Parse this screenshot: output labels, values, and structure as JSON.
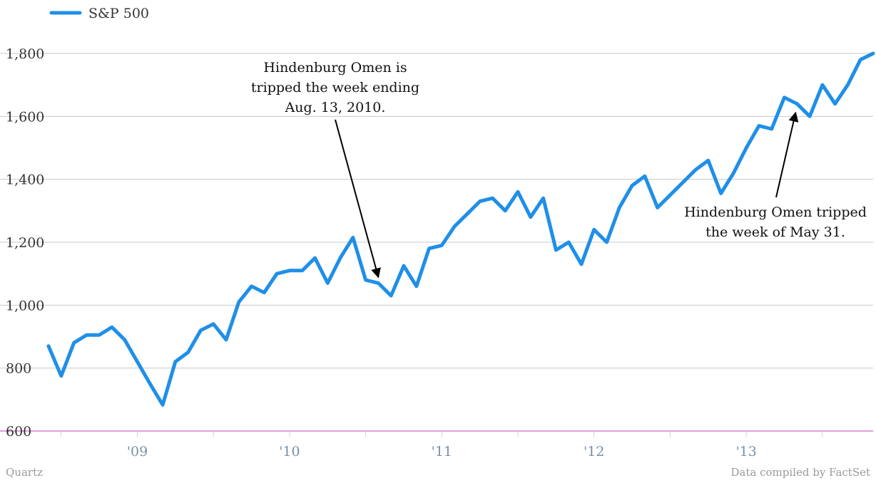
{
  "chart_data": {
    "type": "line",
    "series": [
      {
        "name": "S&P 500",
        "color": "#1f8fe8",
        "points": [
          [
            "2008-06",
            870
          ],
          [
            "2008-07",
            775
          ],
          [
            "2008-08",
            880
          ],
          [
            "2008-09",
            905
          ],
          [
            "2008-10",
            905
          ],
          [
            "2008-11",
            930
          ],
          [
            "2008-12",
            890
          ],
          [
            "2009-01",
            820
          ],
          [
            "2009-02",
            750
          ],
          [
            "2009-03",
            683
          ],
          [
            "2009-04",
            820
          ],
          [
            "2009-05",
            850
          ],
          [
            "2009-06",
            920
          ],
          [
            "2009-07",
            940
          ],
          [
            "2009-08",
            890
          ],
          [
            "2009-09",
            1010
          ],
          [
            "2009-10",
            1060
          ],
          [
            "2009-11",
            1040
          ],
          [
            "2009-12",
            1100
          ],
          [
            "2010-01",
            1110
          ],
          [
            "2010-02",
            1110
          ],
          [
            "2010-03",
            1150
          ],
          [
            "2010-04",
            1070
          ],
          [
            "2010-05",
            1150
          ],
          [
            "2010-06",
            1215
          ],
          [
            "2010-07",
            1080
          ],
          [
            "2010-08",
            1070
          ],
          [
            "2010-09",
            1030
          ],
          [
            "2010-10",
            1125
          ],
          [
            "2010-11",
            1060
          ],
          [
            "2010-12",
            1180
          ],
          [
            "2011-01",
            1190
          ],
          [
            "2011-02",
            1250
          ],
          [
            "2011-03",
            1290
          ],
          [
            "2011-04",
            1330
          ],
          [
            "2011-05",
            1340
          ],
          [
            "2011-06",
            1300
          ],
          [
            "2011-07",
            1360
          ],
          [
            "2011-08",
            1280
          ],
          [
            "2011-09",
            1340
          ],
          [
            "2011-10",
            1175
          ],
          [
            "2011-11",
            1200
          ],
          [
            "2011-12",
            1130
          ],
          [
            "2012-01",
            1240
          ],
          [
            "2012-02",
            1200
          ],
          [
            "2012-03",
            1310
          ],
          [
            "2012-04",
            1380
          ],
          [
            "2012-05",
            1410
          ],
          [
            "2012-06",
            1310
          ],
          [
            "2012-07",
            1350
          ],
          [
            "2012-08",
            1390
          ],
          [
            "2012-09",
            1430
          ],
          [
            "2012-10",
            1460
          ],
          [
            "2012-11",
            1355
          ],
          [
            "2012-12",
            1420
          ],
          [
            "2013-01",
            1500
          ],
          [
            "2013-02",
            1570
          ],
          [
            "2013-03",
            1560
          ],
          [
            "2013-04",
            1660
          ],
          [
            "2013-05",
            1640
          ],
          [
            "2013-06",
            1600
          ],
          [
            "2013-07",
            1700
          ],
          [
            "2013-08",
            1640
          ],
          [
            "2013-09",
            1700
          ],
          [
            "2013-10",
            1780
          ],
          [
            "2013-11",
            1800
          ]
        ]
      }
    ],
    "ylim": [
      600,
      1800
    ],
    "yticks": [
      "600",
      "800",
      "1,000",
      "1,200",
      "1,400",
      "1,600",
      "1,800"
    ],
    "ytick_values": [
      600,
      800,
      1000,
      1200,
      1400,
      1600,
      1800
    ],
    "xticks": [
      "'09",
      "'10",
      "'11",
      "'12",
      "'13"
    ],
    "xtick_dates": [
      "2009-01",
      "2010-01",
      "2011-01",
      "2012-01",
      "2013-01"
    ],
    "xlim": [
      "2008-06",
      "2013-11"
    ],
    "grid": true,
    "legend_position": "top-left",
    "annotations": [
      {
        "lines": [
          "Hindenburg Omen is",
          "tripped the week ending",
          "Aug. 13, 2010."
        ],
        "target": [
          "2010-08",
          1075
        ]
      },
      {
        "lines": [
          "Hindenburg Omen tripped",
          "the week of May 31."
        ],
        "target": [
          "2013-05",
          1630
        ]
      }
    ]
  },
  "footer": {
    "left": "Quartz",
    "right": "Data compiled by FactSet"
  },
  "colors": {
    "line": "#1f8fe8",
    "grid": "#c8c8c8",
    "baseline": "#d67fd6",
    "xtick_text": "#7a8fa6"
  }
}
